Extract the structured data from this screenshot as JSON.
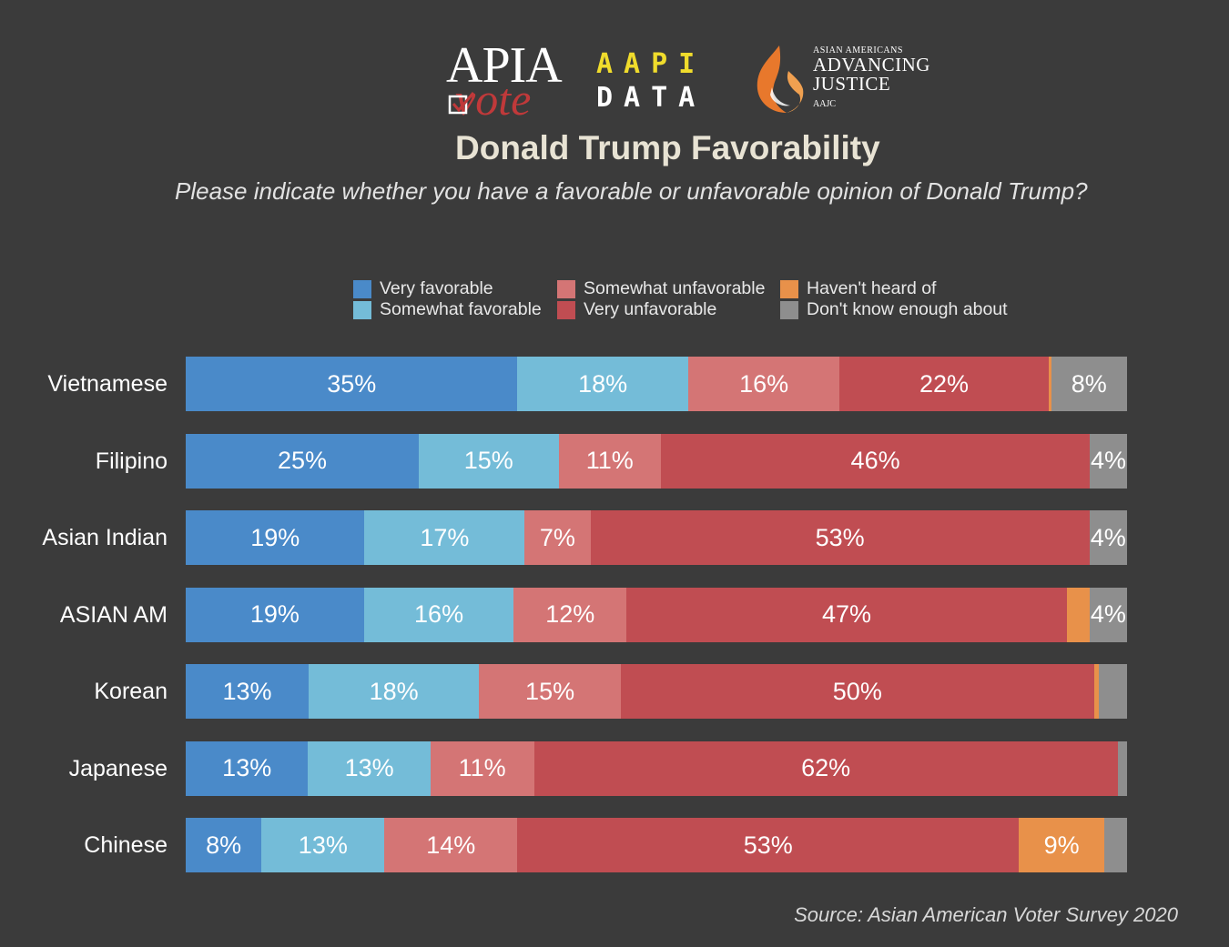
{
  "logos": {
    "apia_top": "APIA",
    "apia_bottom": "vote",
    "aapi_line1": "AAPI",
    "aapi_line2": "DATA",
    "aajc_line1": "ASIAN AMERICANS",
    "aajc_line2": "ADVANCING",
    "aajc_line3": "JUSTICE",
    "aajc_line4": "AAJC"
  },
  "colors": {
    "very_favorable": "#4a8ac9",
    "somewhat_favorable": "#74bcd8",
    "somewhat_unfavorable": "#d47575",
    "very_unfavorable": "#c04d52",
    "havent_heard": "#e8914a",
    "dont_know": "#8e8e8e"
  },
  "chart_data": {
    "type": "bar",
    "orientation": "horizontal",
    "stacked": true,
    "title": "Donald Trump Favorability",
    "subtitle": "Please indicate whether you have a favorable or unfavorable opinion of Donald Trump?",
    "source": "Source: Asian American Voter Survey 2020",
    "legend_position": "top",
    "categories": [
      "Vietnamese",
      "Filipino",
      "Asian Indian",
      "ASIAN AM",
      "Korean",
      "Japanese",
      "Chinese"
    ],
    "series": [
      {
        "name": "Very favorable",
        "key": "very_favorable",
        "values": [
          35,
          25,
          19,
          19,
          13,
          13,
          8
        ],
        "labels": [
          "35%",
          "25%",
          "19%",
          "19%",
          "13%",
          "13%",
          "8%"
        ]
      },
      {
        "name": "Somewhat favorable",
        "key": "somewhat_favorable",
        "values": [
          18,
          15,
          17,
          16,
          18,
          13,
          13
        ],
        "labels": [
          "18%",
          "15%",
          "17%",
          "16%",
          "18%",
          "13%",
          "13%"
        ]
      },
      {
        "name": "Somewhat unfavorable",
        "key": "somewhat_unfavorable",
        "values": [
          16,
          11,
          7,
          12,
          15,
          11,
          14
        ],
        "labels": [
          "16%",
          "11%",
          "7%",
          "12%",
          "15%",
          "11%",
          "14%"
        ]
      },
      {
        "name": "Very unfavorable",
        "key": "very_unfavorable",
        "values": [
          22,
          46,
          53,
          47,
          50,
          62,
          53
        ],
        "labels": [
          "22%",
          "46%",
          "53%",
          "47%",
          "50%",
          "62%",
          "53%"
        ]
      },
      {
        "name": "Haven't heard of",
        "key": "havent_heard",
        "values": [
          0.3,
          0,
          0,
          2.4,
          0.5,
          0,
          9
        ],
        "labels": [
          "",
          "",
          "",
          "",
          "",
          "",
          "9%"
        ]
      },
      {
        "name": "Don't know enough about",
        "key": "dont_know",
        "values": [
          8,
          4,
          4,
          4,
          3,
          1,
          2.4
        ],
        "labels": [
          "8%",
          "4%",
          "4%",
          "4%",
          "",
          "",
          ""
        ]
      }
    ]
  }
}
